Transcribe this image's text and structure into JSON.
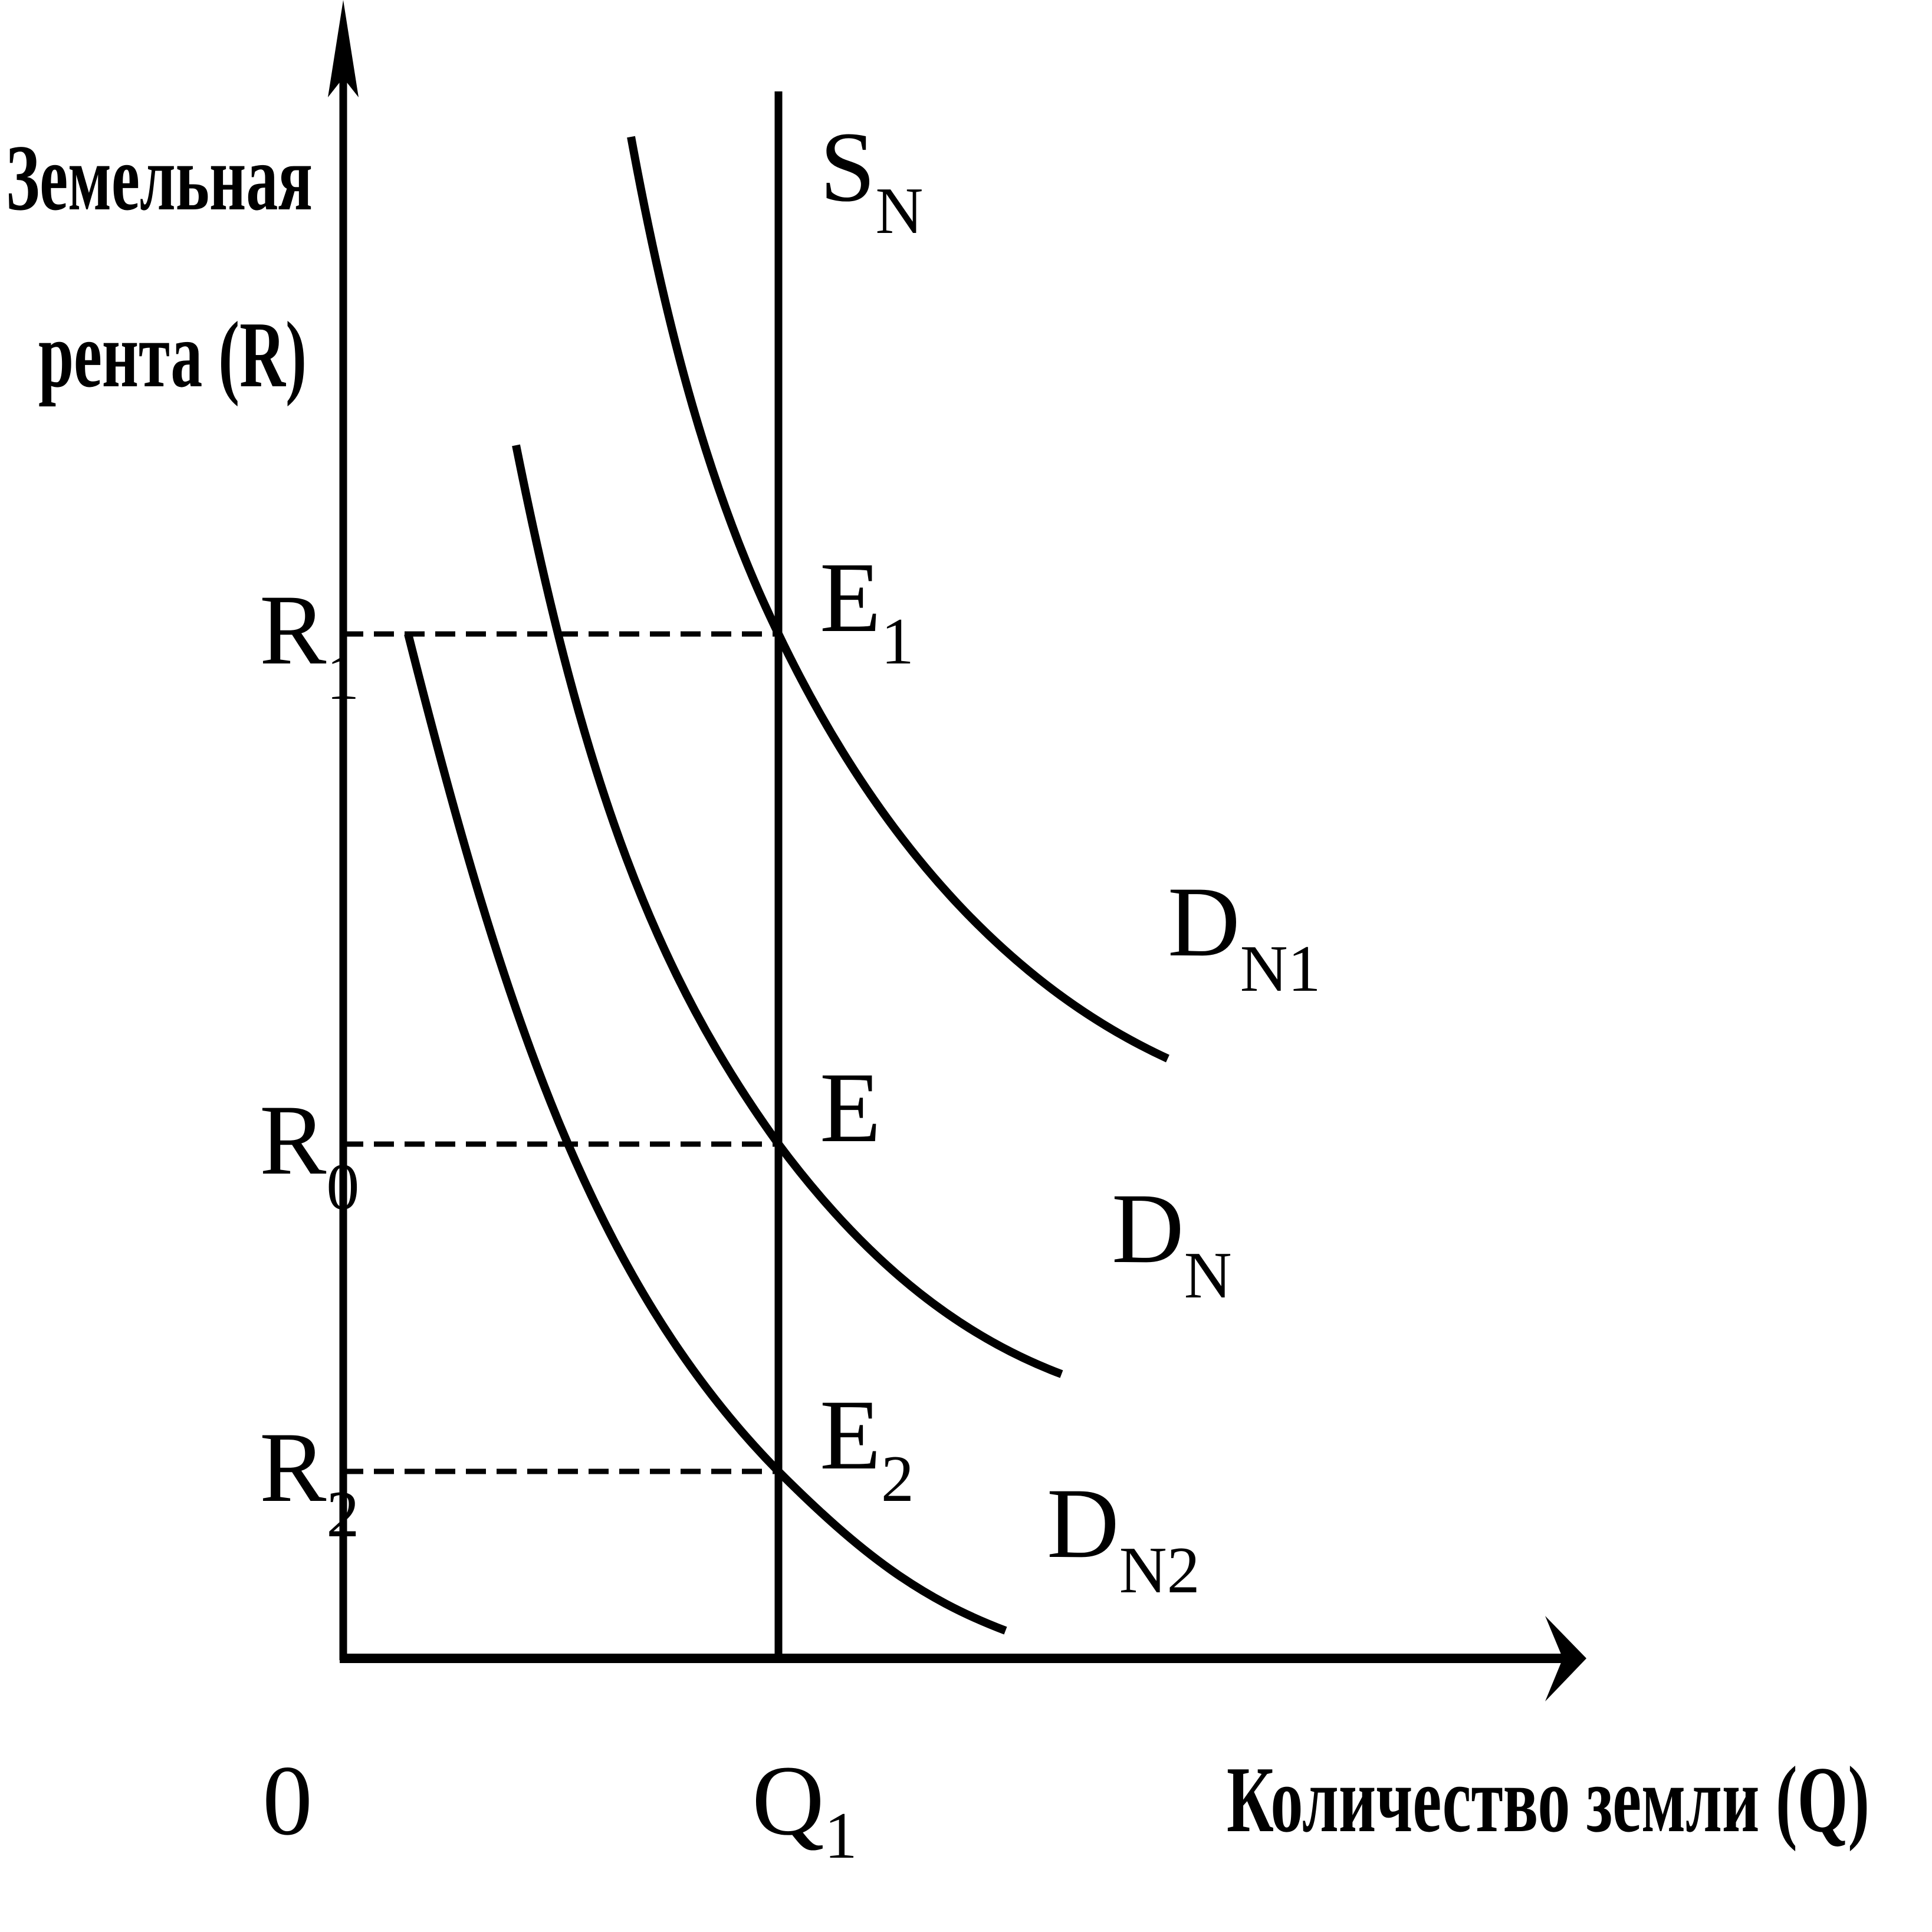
{
  "y_axis_title": [
    "Земельная",
    "рента (R)"
  ],
  "x_axis_title": "Количество земли (Q)",
  "origin_label": "0",
  "q_tick": {
    "main": "Q",
    "sub": "1"
  },
  "r_ticks": {
    "r1": {
      "main": "R",
      "sub": "1"
    },
    "r0": {
      "main": "R",
      "sub": "0"
    },
    "r2": {
      "main": "R",
      "sub": "2"
    }
  },
  "supply": {
    "main": "S",
    "sub": "N"
  },
  "demand": {
    "dn1": {
      "main": "D",
      "sub": "N1"
    },
    "dn": {
      "main": "D",
      "sub": "N"
    },
    "dn2": {
      "main": "D",
      "sub": "N2"
    }
  },
  "equilibria": {
    "e1": {
      "main": "E",
      "sub": "1"
    },
    "e": {
      "main": "E",
      "sub": ""
    },
    "e2": {
      "main": "E",
      "sub": "2"
    }
  },
  "colors": {
    "ink": "#000000",
    "background": "#ffffff"
  }
}
